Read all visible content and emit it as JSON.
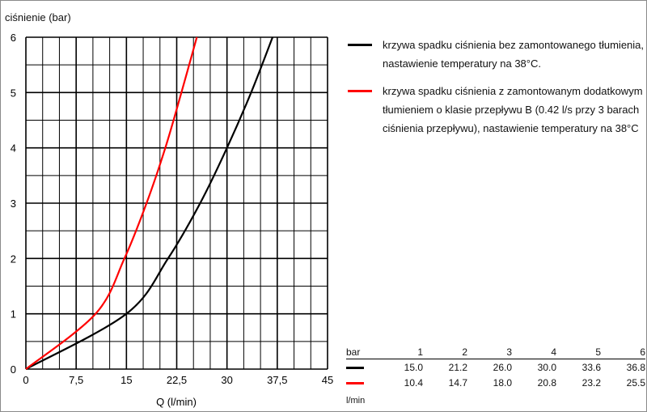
{
  "chart_data": {
    "type": "line",
    "ylabel": "ciśnienie (bar)",
    "xlabel": "Q (l/min)",
    "xlim": [
      0,
      45
    ],
    "ylim": [
      0,
      6
    ],
    "xticks": [
      "0",
      "7,5",
      "15",
      "22,5",
      "30",
      "37,5",
      "45"
    ],
    "yticks": [
      "0",
      "1",
      "2",
      "3",
      "4",
      "5",
      "6"
    ],
    "grid": true,
    "legend_position": "right",
    "series": [
      {
        "name": "krzywa spadku ciśnienia bez zamontowanego tłumienia, nastawienie temperatury na 38°C.",
        "color": "#000000",
        "x": [
          0,
          15.0,
          21.2,
          26.0,
          30.0,
          33.6,
          36.8
        ],
        "y": [
          0,
          1,
          2,
          3,
          4,
          5,
          6
        ]
      },
      {
        "name": "krzywa spadku ciśnienia z zamontowanym dodatkowym tłumieniem o klasie przepływu B (0.42 l/s przy 3 barach ciśnienia przepływu), nastawienie temperatury na 38°C",
        "color": "#ff0000",
        "x": [
          0,
          10.4,
          14.7,
          18.0,
          20.8,
          23.2,
          25.5
        ],
        "y": [
          0,
          1,
          2,
          3,
          4,
          5,
          6
        ]
      }
    ]
  },
  "table": {
    "header_label": "bar",
    "unit_label": "l/min",
    "columns": [
      "1",
      "2",
      "3",
      "4",
      "5",
      "6"
    ],
    "rows": [
      {
        "color": "#000000",
        "values": [
          "15.0",
          "21.2",
          "26.0",
          "30.0",
          "33.6",
          "36.8"
        ]
      },
      {
        "color": "#ff0000",
        "values": [
          "10.4",
          "14.7",
          "18.0",
          "20.8",
          "23.2",
          "25.5"
        ]
      }
    ]
  }
}
